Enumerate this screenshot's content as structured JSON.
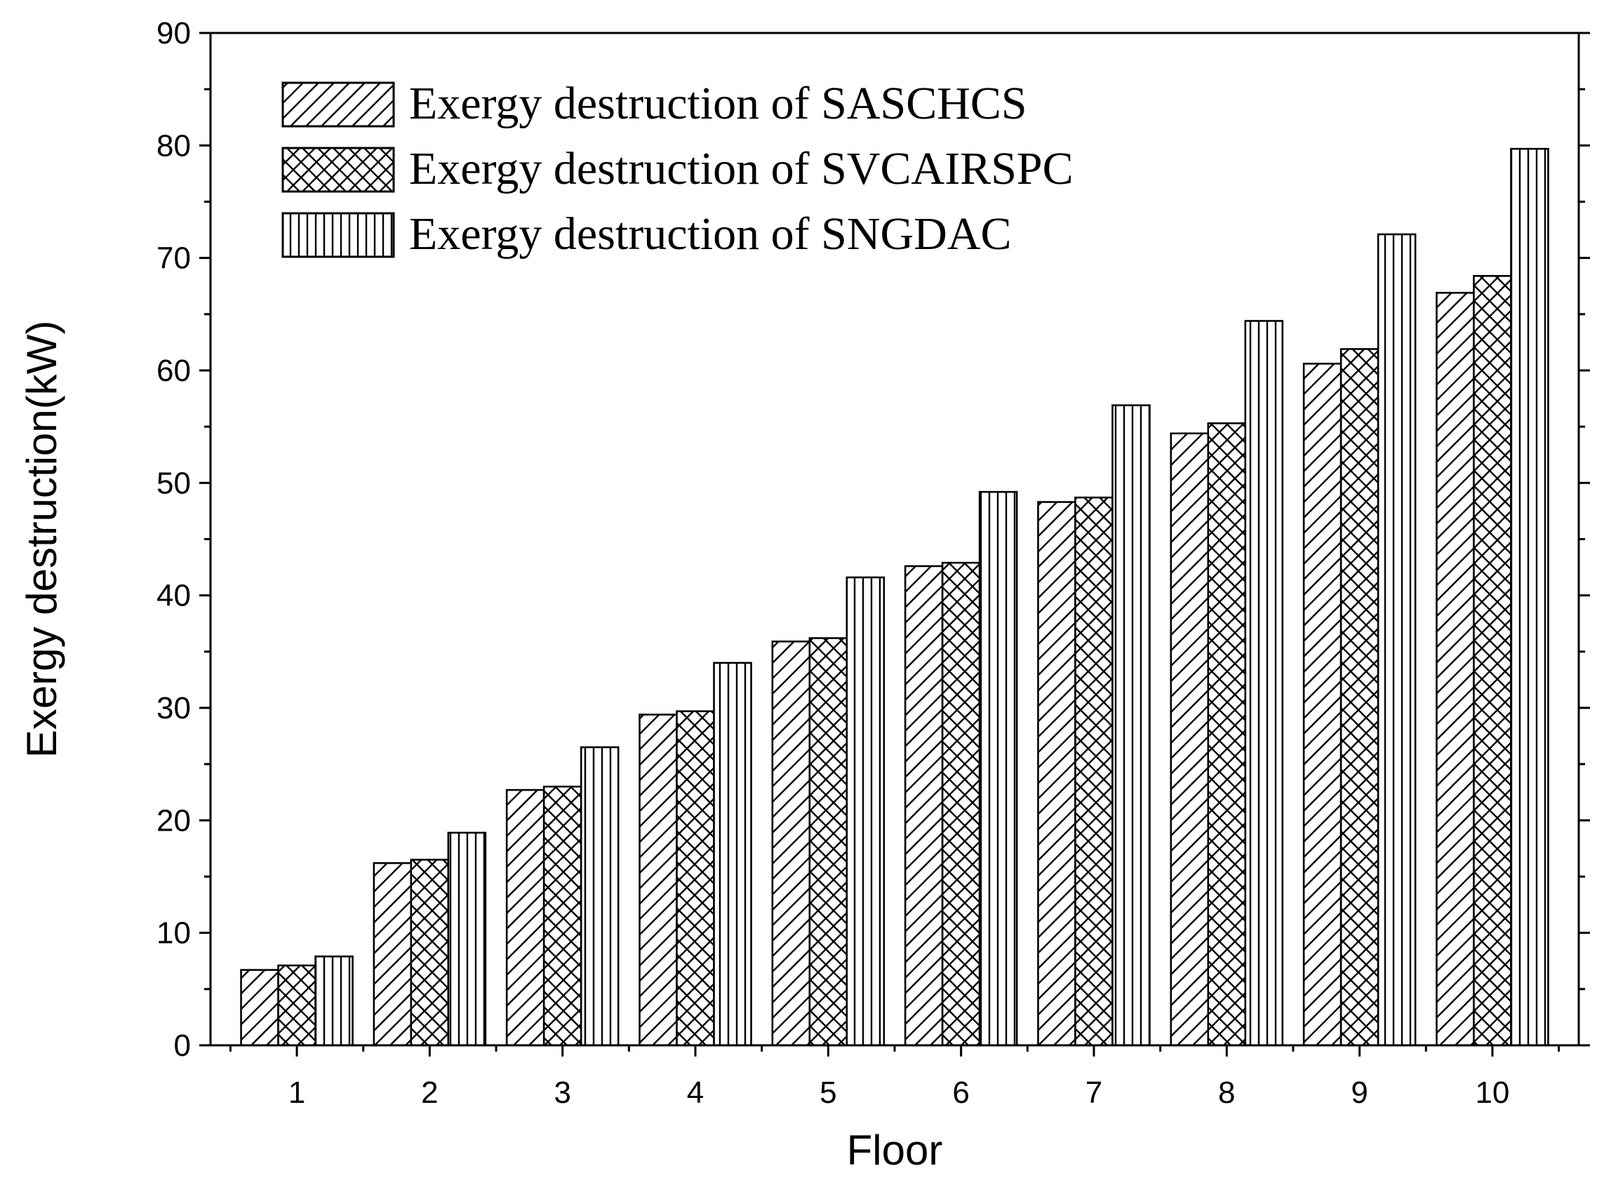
{
  "chart_data": {
    "type": "bar",
    "title": "",
    "xlabel": "Floor",
    "ylabel": "Exergy destruction(kW)",
    "ylim": [
      0,
      90
    ],
    "yticks": [
      0,
      10,
      20,
      30,
      40,
      50,
      60,
      70,
      80,
      90
    ],
    "categories": [
      "1",
      "2",
      "3",
      "4",
      "5",
      "6",
      "7",
      "8",
      "9",
      "10"
    ],
    "legend_position": "top-left",
    "series": [
      {
        "name": "Exergy destruction of SASCHCS",
        "pattern": "diagonal",
        "values": [
          6.7,
          16.2,
          22.7,
          29.4,
          35.9,
          42.6,
          48.3,
          54.4,
          60.6,
          66.9
        ]
      },
      {
        "name": "Exergy destruction of SVCAIRSPC",
        "pattern": "crosshatch",
        "values": [
          7.1,
          16.5,
          23.0,
          29.7,
          36.2,
          42.9,
          48.7,
          55.3,
          61.9,
          68.4
        ]
      },
      {
        "name": "Exergy destruction of SNGDAC",
        "pattern": "vertical",
        "values": [
          7.9,
          18.9,
          26.5,
          34.0,
          41.6,
          49.2,
          56.9,
          64.4,
          72.1,
          79.7
        ]
      }
    ]
  }
}
